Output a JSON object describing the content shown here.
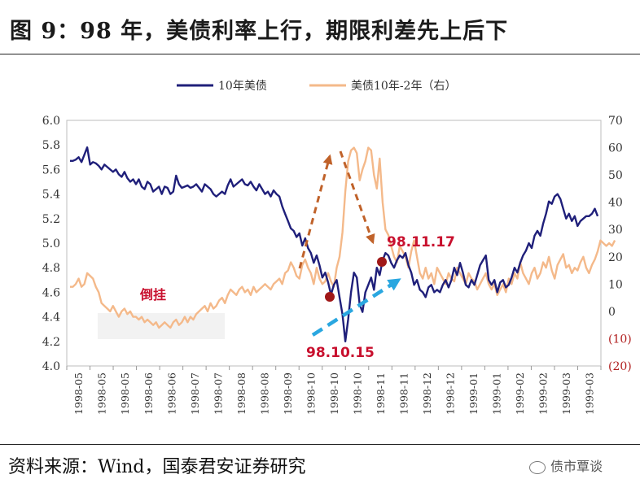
{
  "title": "图 9：98 年，美债利率上行，期限利差先上后下",
  "source": "资料来源：Wind，国泰君安证券研究",
  "watermark": "债市覃谈",
  "colors": {
    "series1": "#1f1f7a",
    "series2": "#f4b98a",
    "annotation": "#c8102e",
    "arrow_up": "#c0622a",
    "arrow_blue": "#2aa7e0"
  },
  "chart_data": {
    "type": "line",
    "x_tick_labels": [
      "1998-05",
      "1998-05",
      "1998-05",
      "1998-06",
      "1998-06",
      "1998-07",
      "1998-07",
      "1998-08",
      "1998-08",
      "1998-09",
      "1998-10",
      "1998-10",
      "1998-10",
      "1998-11",
      "1998-11",
      "1998-12",
      "1998-12",
      "1999-01",
      "1999-01",
      "1999-02",
      "1999-02",
      "1999-03",
      "1999-03"
    ],
    "y_left": {
      "min": 4.0,
      "max": 6.0,
      "step": 0.2,
      "labels": [
        "4.0",
        "4.2",
        "4.4",
        "4.6",
        "4.8",
        "5.0",
        "5.2",
        "5.4",
        "5.6",
        "5.8",
        "6.0"
      ]
    },
    "y_right": {
      "min": -20,
      "max": 70,
      "step": 10,
      "labels": [
        "(20)",
        "(10)",
        "0",
        "10",
        "20",
        "30",
        "40",
        "50",
        "60",
        "70"
      ]
    },
    "legend_placement": "top",
    "series": [
      {
        "name": "10年美债",
        "axis": "left",
        "values": [
          5.67,
          5.67,
          5.68,
          5.7,
          5.66,
          5.72,
          5.78,
          5.64,
          5.66,
          5.65,
          5.63,
          5.6,
          5.64,
          5.62,
          5.6,
          5.58,
          5.6,
          5.56,
          5.54,
          5.58,
          5.53,
          5.5,
          5.52,
          5.48,
          5.52,
          5.46,
          5.44,
          5.5,
          5.48,
          5.42,
          5.44,
          5.46,
          5.4,
          5.46,
          5.45,
          5.4,
          5.42,
          5.55,
          5.48,
          5.45,
          5.46,
          5.47,
          5.45,
          5.46,
          5.48,
          5.45,
          5.42,
          5.48,
          5.46,
          5.44,
          5.4,
          5.38,
          5.4,
          5.42,
          5.4,
          5.47,
          5.52,
          5.46,
          5.48,
          5.5,
          5.52,
          5.48,
          5.47,
          5.5,
          5.46,
          5.43,
          5.48,
          5.44,
          5.4,
          5.42,
          5.38,
          5.43,
          5.4,
          5.38,
          5.3,
          5.24,
          5.18,
          5.12,
          5.1,
          5.05,
          5.08,
          4.98,
          5.04,
          4.96,
          4.92,
          4.84,
          4.9,
          4.82,
          4.72,
          4.76,
          4.68,
          4.58,
          4.66,
          4.7,
          4.56,
          4.42,
          4.2,
          4.38,
          4.6,
          4.76,
          4.72,
          4.5,
          4.44,
          4.6,
          4.66,
          4.72,
          4.62,
          4.8,
          4.74,
          4.86,
          4.92,
          4.9,
          4.84,
          4.8,
          4.86,
          4.9,
          4.88,
          4.92,
          4.82,
          4.76,
          4.66,
          4.7,
          4.62,
          4.6,
          4.56,
          4.64,
          4.66,
          4.6,
          4.62,
          4.6,
          4.66,
          4.7,
          4.64,
          4.7,
          4.8,
          4.74,
          4.84,
          4.76,
          4.66,
          4.64,
          4.7,
          4.66,
          4.74,
          4.82,
          4.86,
          4.9,
          4.7,
          4.66,
          4.7,
          4.6,
          4.68,
          4.7,
          4.64,
          4.66,
          4.72,
          4.8,
          4.76,
          4.84,
          4.9,
          4.94,
          5.0,
          4.96,
          5.06,
          5.1,
          5.06,
          5.16,
          5.24,
          5.34,
          5.32,
          5.38,
          5.4,
          5.36,
          5.28,
          5.2,
          5.24,
          5.18,
          5.22,
          5.14,
          5.18,
          5.2,
          5.22,
          5.22,
          5.24,
          5.28,
          5.22
        ]
      },
      {
        "name": "美债10年-2年（右）",
        "axis": "right",
        "values": [
          9,
          9,
          10,
          12,
          9,
          10,
          14,
          13,
          12,
          9,
          7,
          3,
          2,
          1,
          0,
          2,
          0,
          -2,
          0,
          1,
          -1,
          0,
          -2,
          -2,
          -3,
          -2,
          -4,
          -3,
          -4,
          -5,
          -4,
          -6,
          -5,
          -4,
          -5,
          -6,
          -4,
          -3,
          -5,
          -4,
          -2,
          -4,
          -2,
          -3,
          -1,
          0,
          1,
          2,
          0,
          3,
          1,
          2,
          4,
          5,
          3,
          6,
          8,
          7,
          6,
          8,
          9,
          7,
          8,
          6,
          9,
          7,
          8,
          9,
          10,
          9,
          8,
          10,
          11,
          12,
          10,
          14,
          15,
          18,
          16,
          13,
          12,
          17,
          19,
          16,
          14,
          10,
          16,
          12,
          10,
          11,
          14,
          11,
          9,
          16,
          20,
          29,
          44,
          55,
          59,
          60,
          58,
          48,
          52,
          55,
          60,
          59,
          50,
          45,
          56,
          40,
          30,
          28,
          24,
          20,
          18,
          24,
          22,
          20,
          16,
          22,
          26,
          20,
          14,
          12,
          16,
          12,
          14,
          10,
          16,
          14,
          12,
          10,
          14,
          12,
          11,
          16,
          14,
          12,
          10,
          14,
          12,
          11,
          8,
          10,
          12,
          14,
          10,
          8,
          10,
          6,
          8,
          10,
          7,
          12,
          10,
          14,
          12,
          18,
          14,
          12,
          10,
          14,
          16,
          12,
          14,
          18,
          16,
          20,
          15,
          12,
          17,
          19,
          21,
          16,
          17,
          14,
          16,
          15,
          18,
          20,
          16,
          14,
          17,
          19,
          22,
          26,
          25,
          24,
          25,
          24,
          26
        ]
      }
    ],
    "annotations": [
      {
        "text": "98.10.15",
        "series": 0,
        "index": 96
      },
      {
        "text": "98.11.17",
        "series": 0,
        "index": 115
      },
      {
        "text": "倒挂"
      }
    ]
  }
}
